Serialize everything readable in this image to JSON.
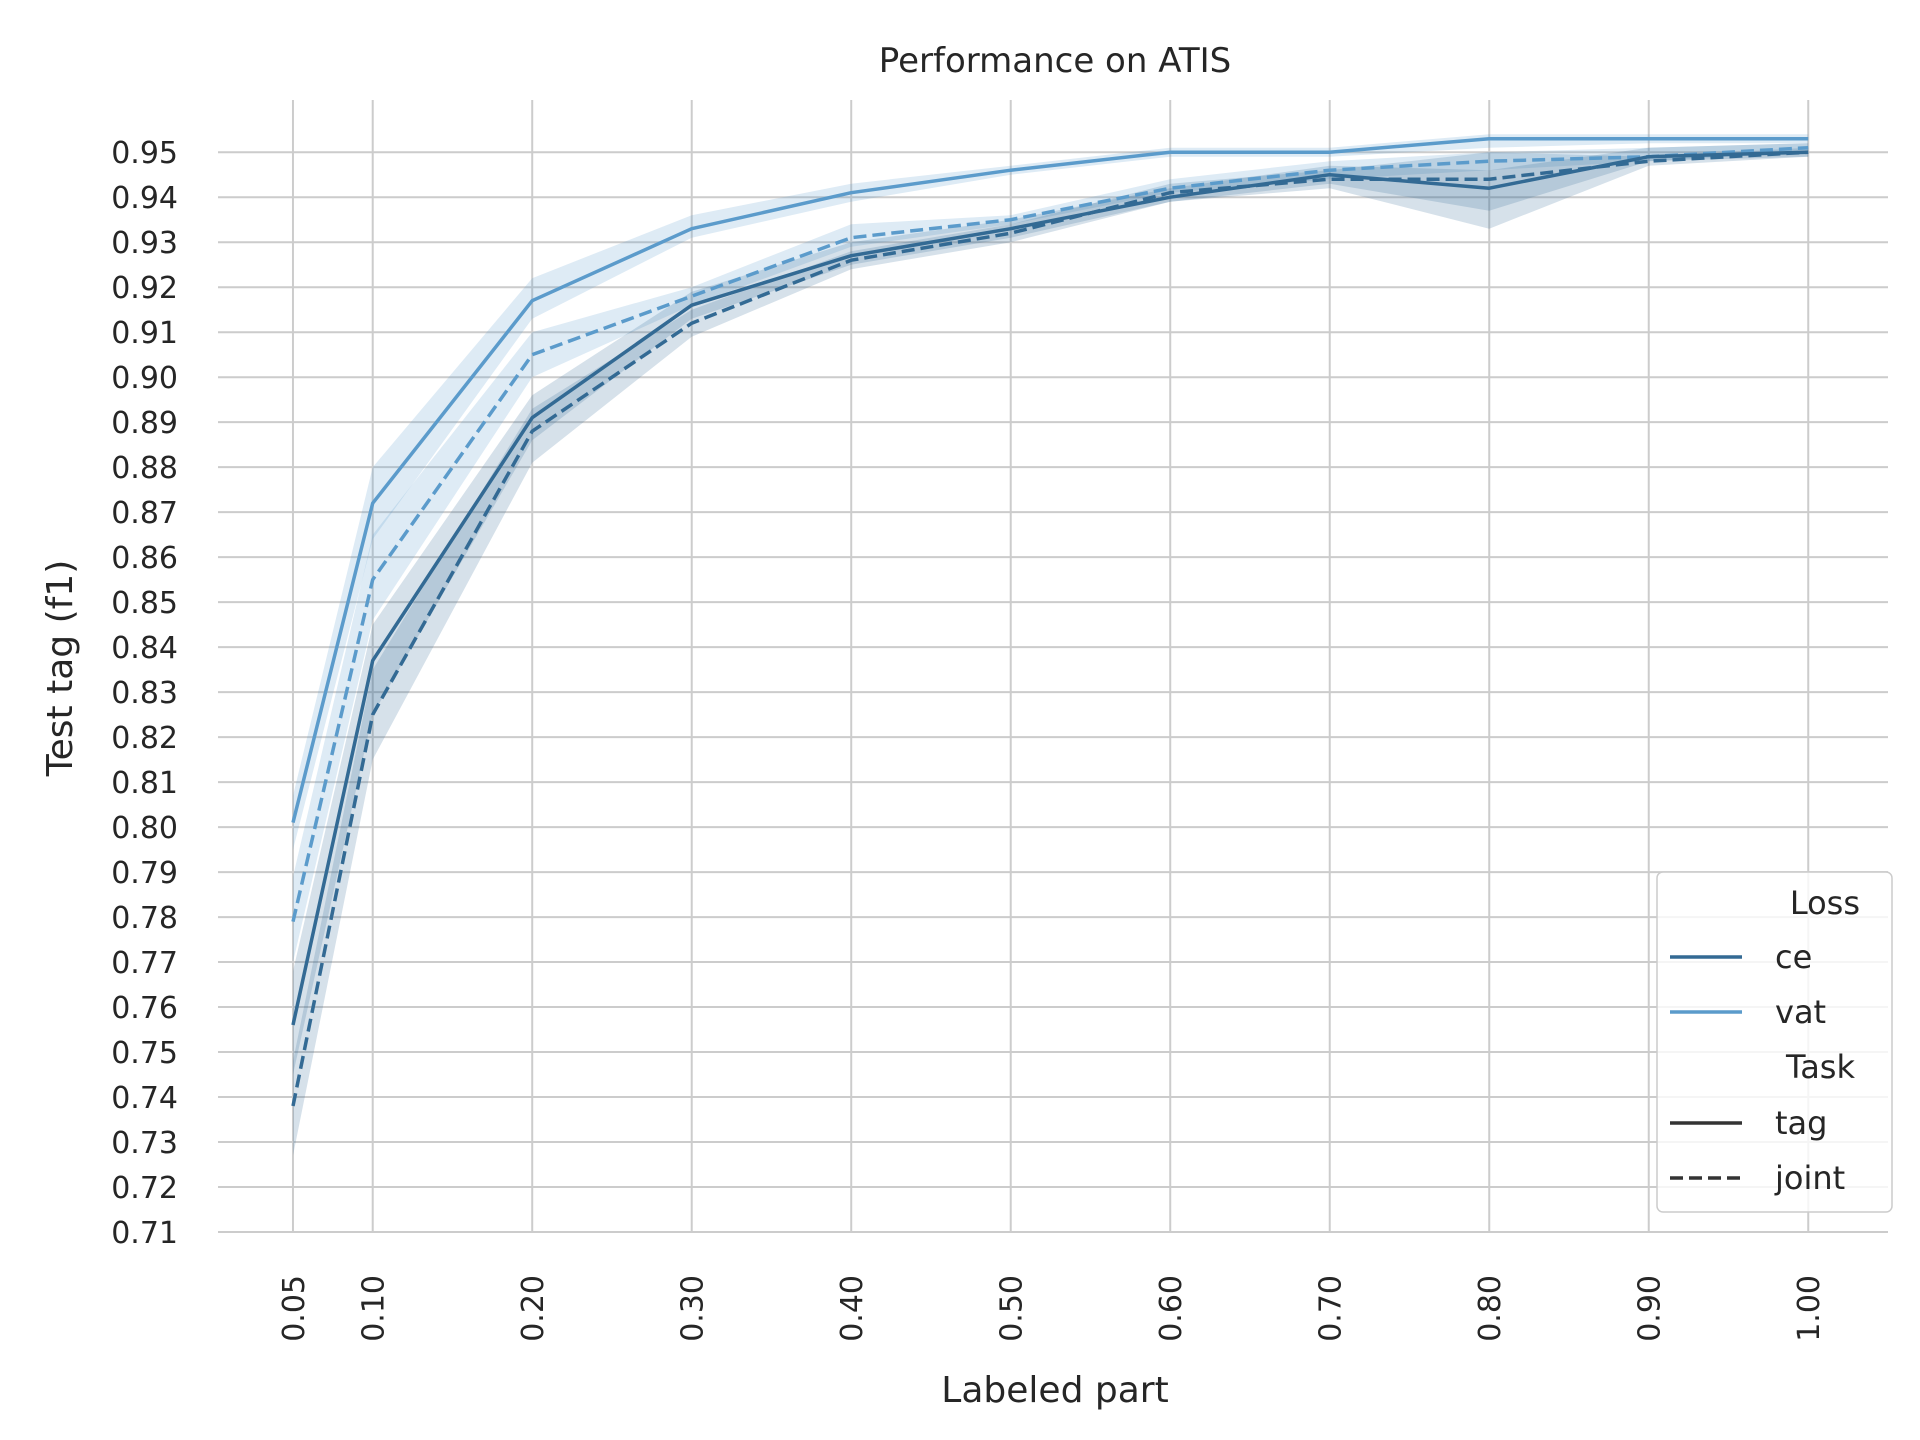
{
  "chart_data": {
    "type": "line",
    "title": "Performance on ATIS",
    "xlabel": "Labeled part",
    "ylabel": "Test tag (f1)",
    "x": [
      0.05,
      0.1,
      0.2,
      0.3,
      0.4,
      0.5,
      0.6,
      0.7,
      0.8,
      0.9,
      1.0
    ],
    "x_tick_labels": [
      "0.05",
      "0.10",
      "0.20",
      "0.30",
      "0.40",
      "0.50",
      "0.60",
      "0.70",
      "0.80",
      "0.90",
      "1.00"
    ],
    "xlim": [
      0.003,
      1.05
    ],
    "ylim": [
      0.71,
      0.9605
    ],
    "y_ticks": [
      0.71,
      0.72,
      0.73,
      0.74,
      0.75,
      0.76,
      0.77,
      0.78,
      0.79,
      0.8,
      0.81,
      0.82,
      0.83,
      0.84,
      0.85,
      0.86,
      0.87,
      0.88,
      0.89,
      0.9,
      0.91,
      0.92,
      0.93,
      0.94,
      0.95
    ],
    "y_tick_labels": [
      "0.71",
      "0.72",
      "0.73",
      "0.74",
      "0.75",
      "0.76",
      "0.77",
      "0.78",
      "0.79",
      "0.80",
      "0.81",
      "0.82",
      "0.83",
      "0.84",
      "0.85",
      "0.86",
      "0.87",
      "0.88",
      "0.89",
      "0.90",
      "0.91",
      "0.92",
      "0.93",
      "0.94",
      "0.95"
    ],
    "grid": true,
    "legend_position": "bottom-right",
    "legend": {
      "loss_title": "Loss",
      "loss_entries": [
        {
          "label": "ce",
          "color": "#336a94"
        },
        {
          "label": "vat",
          "color": "#5b9bcb"
        }
      ],
      "task_title": "Task",
      "task_entries": [
        {
          "label": "tag",
          "style": "solid"
        },
        {
          "label": "joint",
          "style": "dashed"
        }
      ]
    },
    "series": [
      {
        "loss": "vat",
        "task": "tag",
        "color": "#5b9bcb",
        "dash": false,
        "values": [
          0.801,
          0.872,
          0.917,
          0.933,
          0.941,
          0.946,
          0.95,
          0.95,
          0.953,
          0.953,
          0.953
        ],
        "lower": [
          0.795,
          0.864,
          0.913,
          0.931,
          0.939,
          0.945,
          0.949,
          0.949,
          0.951,
          0.952,
          0.952
        ],
        "upper": [
          0.807,
          0.88,
          0.922,
          0.936,
          0.943,
          0.947,
          0.951,
          0.951,
          0.954,
          0.954,
          0.954
        ]
      },
      {
        "loss": "vat",
        "task": "joint",
        "color": "#5b9bcb",
        "dash": true,
        "values": [
          0.779,
          0.855,
          0.905,
          0.918,
          0.931,
          0.935,
          0.942,
          0.946,
          0.948,
          0.949,
          0.951
        ],
        "lower": [
          0.77,
          0.846,
          0.9,
          0.916,
          0.929,
          0.934,
          0.941,
          0.944,
          0.946,
          0.948,
          0.95
        ],
        "upper": [
          0.789,
          0.865,
          0.91,
          0.92,
          0.934,
          0.936,
          0.944,
          0.948,
          0.95,
          0.951,
          0.952
        ]
      },
      {
        "loss": "ce",
        "task": "tag",
        "color": "#336a94",
        "dash": false,
        "values": [
          0.756,
          0.837,
          0.891,
          0.916,
          0.927,
          0.933,
          0.94,
          0.945,
          0.942,
          0.949,
          0.95
        ],
        "lower": [
          0.745,
          0.825,
          0.886,
          0.913,
          0.925,
          0.931,
          0.939,
          0.943,
          0.937,
          0.948,
          0.949
        ],
        "upper": [
          0.768,
          0.845,
          0.896,
          0.919,
          0.93,
          0.935,
          0.942,
          0.947,
          0.946,
          0.951,
          0.952
        ]
      },
      {
        "loss": "ce",
        "task": "joint",
        "color": "#336a94",
        "dash": true,
        "values": [
          0.738,
          0.825,
          0.888,
          0.912,
          0.926,
          0.932,
          0.941,
          0.944,
          0.944,
          0.948,
          0.95
        ],
        "lower": [
          0.727,
          0.815,
          0.881,
          0.909,
          0.924,
          0.93,
          0.939,
          0.942,
          0.933,
          0.947,
          0.949
        ],
        "upper": [
          0.748,
          0.835,
          0.893,
          0.915,
          0.928,
          0.934,
          0.943,
          0.946,
          0.95,
          0.949,
          0.951
        ]
      }
    ]
  }
}
